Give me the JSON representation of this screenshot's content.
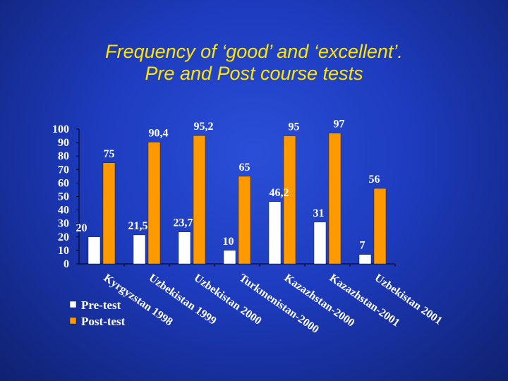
{
  "title_line1": "Frequency of ‘good’ and ‘excellent’.",
  "title_line2": "Pre and Post course tests",
  "chart_data": {
    "type": "bar",
    "categories": [
      "Kyrgyzstan 1998",
      "Uzbekistan 1999",
      "Uzbekistan 2000",
      "Turkmenistan-2000",
      "Kazazhstan-2000",
      "Kazazhstan-2001",
      "Uzbekistan 2001"
    ],
    "series": [
      {
        "name": "Pre-test",
        "values": [
          20,
          21.5,
          23.7,
          10,
          46.2,
          31,
          7
        ],
        "labels": [
          "20",
          "21,5",
          "23,7",
          "10",
          "46,2",
          "31",
          "7"
        ],
        "color": "#ffffff"
      },
      {
        "name": "Post-test",
        "values": [
          75,
          90.4,
          95.2,
          65,
          95,
          97,
          56
        ],
        "labels": [
          "75",
          "90,4",
          "95,2",
          "65",
          "95",
          "97",
          "56"
        ],
        "color": "#ff9900"
      }
    ],
    "yticks": [
      "100",
      "90",
      "80",
      "70",
      "60",
      "50",
      "40",
      "30",
      "20",
      "10",
      "0"
    ],
    "ylim": [
      0,
      100
    ],
    "grid": false,
    "legend_position": "bottom-left"
  }
}
